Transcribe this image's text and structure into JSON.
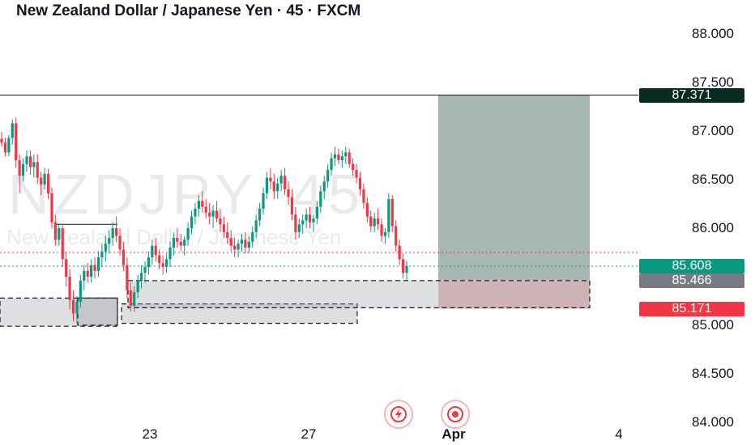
{
  "header": {
    "title": "New Zealand Dollar / Japanese Yen · 45 · FXCM"
  },
  "watermark": {
    "symbol": "NZDJPY, 45",
    "name": "New Zealand Dollar / Japanese Yen"
  },
  "chart_data": {
    "type": "candlestick",
    "ylim": [
      83.95,
      88.2
    ],
    "y_ticks": [
      "88.000",
      "87.500",
      "87.000",
      "86.500",
      "86.000",
      "85.000",
      "84.500",
      "84.000"
    ],
    "x_ticks": [
      {
        "label": "23",
        "bold": false
      },
      {
        "label": "27",
        "bold": false
      },
      {
        "label": "Apr",
        "bold": true
      },
      {
        "label": "4",
        "bold": false
      }
    ],
    "price_badges": [
      {
        "label": "87.371",
        "value": 87.371,
        "color": "#0a2b21"
      },
      {
        "label": "85.608",
        "value": 85.608,
        "color": "#089981"
      },
      {
        "label": "85.466",
        "value": 85.466,
        "color": "#787b86"
      },
      {
        "label": "85.171",
        "value": 85.171,
        "color": "#f23645"
      }
    ],
    "horizontal_line": 87.371,
    "dotted_lines": [
      {
        "value": 85.75,
        "color": "#f23645"
      },
      {
        "value": 85.608,
        "color": "#089981"
      }
    ],
    "position": {
      "entry": 85.466,
      "target": 87.371,
      "stop": 85.171,
      "profit_color": "#98aaa4",
      "loss_color": "#e5b3b6"
    },
    "zones": [
      {
        "top": 85.28,
        "bottom": 84.99
      },
      {
        "top": 85.28,
        "bottom": 85.0
      },
      {
        "top": 85.22,
        "bottom": 85.02
      },
      {
        "top": 85.46,
        "bottom": 85.18
      }
    ],
    "up_color": "#089981",
    "down_color": "#f23645",
    "candles": [
      [
        86.92,
        86.99,
        86.84,
        86.88
      ],
      [
        86.88,
        86.93,
        86.74,
        86.78
      ],
      [
        86.78,
        86.96,
        86.74,
        86.93
      ],
      [
        86.93,
        87.12,
        86.86,
        87.08
      ],
      [
        87.08,
        87.14,
        86.62,
        86.7
      ],
      [
        86.7,
        86.76,
        86.36,
        86.54
      ],
      [
        86.54,
        86.72,
        86.48,
        86.66
      ],
      [
        86.66,
        86.8,
        86.58,
        86.74
      ],
      [
        86.74,
        86.8,
        86.55,
        86.63
      ],
      [
        86.63,
        86.76,
        86.52,
        86.68
      ],
      [
        86.68,
        86.76,
        86.46,
        86.52
      ],
      [
        86.52,
        86.58,
        86.34,
        86.45
      ],
      [
        86.45,
        86.62,
        86.4,
        86.56
      ],
      [
        86.56,
        86.61,
        86.3,
        86.36
      ],
      [
        86.36,
        86.42,
        86.0,
        86.06
      ],
      [
        86.06,
        86.14,
        85.82,
        85.88
      ],
      [
        85.88,
        86.05,
        85.82,
        86.0
      ],
      [
        86.0,
        86.04,
        85.6,
        85.68
      ],
      [
        85.68,
        85.76,
        85.4,
        85.5
      ],
      [
        85.5,
        85.58,
        85.16,
        85.26
      ],
      [
        85.26,
        85.36,
        85.04,
        85.12
      ],
      [
        85.12,
        85.3,
        85.02,
        85.24
      ],
      [
        85.24,
        85.52,
        85.18,
        85.46
      ],
      [
        85.46,
        85.62,
        85.36,
        85.56
      ],
      [
        85.56,
        85.64,
        85.44,
        85.5
      ],
      [
        85.5,
        85.68,
        85.44,
        85.62
      ],
      [
        85.62,
        85.7,
        85.48,
        85.56
      ],
      [
        85.56,
        85.76,
        85.5,
        85.7
      ],
      [
        85.7,
        85.84,
        85.6,
        85.76
      ],
      [
        85.76,
        85.92,
        85.66,
        85.84
      ],
      [
        85.84,
        85.98,
        85.74,
        85.9
      ],
      [
        85.9,
        86.06,
        85.82,
        86.0
      ],
      [
        86.0,
        86.12,
        85.86,
        85.92
      ],
      [
        85.92,
        86.0,
        85.72,
        85.78
      ],
      [
        85.78,
        85.86,
        85.56,
        85.62
      ],
      [
        85.62,
        85.7,
        85.28,
        85.36
      ],
      [
        85.36,
        85.44,
        85.14,
        85.2
      ],
      [
        85.2,
        85.4,
        85.14,
        85.34
      ],
      [
        85.34,
        85.52,
        85.28,
        85.46
      ],
      [
        85.46,
        85.62,
        85.38,
        85.54
      ],
      [
        85.54,
        85.66,
        85.44,
        85.6
      ],
      [
        85.6,
        85.76,
        85.52,
        85.7
      ],
      [
        85.7,
        85.88,
        85.62,
        85.82
      ],
      [
        85.82,
        85.9,
        85.66,
        85.72
      ],
      [
        85.72,
        85.78,
        85.58,
        85.64
      ],
      [
        85.64,
        85.72,
        85.52,
        85.6
      ],
      [
        85.6,
        85.74,
        85.54,
        85.68
      ],
      [
        85.68,
        85.86,
        85.6,
        85.8
      ],
      [
        85.8,
        85.96,
        85.72,
        85.9
      ],
      [
        85.9,
        86.0,
        85.8,
        85.86
      ],
      [
        85.86,
        85.94,
        85.76,
        85.82
      ],
      [
        85.82,
        85.92,
        85.72,
        85.88
      ],
      [
        85.88,
        86.06,
        85.82,
        86.0
      ],
      [
        86.0,
        86.18,
        85.94,
        86.12
      ],
      [
        86.12,
        86.26,
        86.04,
        86.2
      ],
      [
        86.2,
        86.34,
        86.12,
        86.28
      ],
      [
        86.28,
        86.38,
        86.16,
        86.22
      ],
      [
        86.22,
        86.3,
        86.1,
        86.16
      ],
      [
        86.16,
        86.26,
        86.04,
        86.12
      ],
      [
        86.12,
        86.24,
        86.0,
        86.18
      ],
      [
        86.18,
        86.28,
        86.06,
        86.1
      ],
      [
        86.1,
        86.2,
        85.96,
        86.04
      ],
      [
        86.04,
        86.12,
        85.9,
        85.96
      ],
      [
        85.96,
        86.06,
        85.84,
        85.9
      ],
      [
        85.9,
        85.98,
        85.76,
        85.82
      ],
      [
        85.82,
        85.9,
        85.7,
        85.78
      ],
      [
        85.78,
        85.88,
        85.7,
        85.84
      ],
      [
        85.84,
        85.94,
        85.76,
        85.88
      ],
      [
        85.88,
        85.96,
        85.74,
        85.8
      ],
      [
        85.8,
        85.92,
        85.74,
        85.86
      ],
      [
        85.86,
        86.02,
        85.8,
        85.96
      ],
      [
        85.96,
        86.14,
        85.9,
        86.08
      ],
      [
        86.08,
        86.26,
        86.02,
        86.2
      ],
      [
        86.2,
        86.42,
        86.14,
        86.36
      ],
      [
        86.36,
        86.58,
        86.3,
        86.52
      ],
      [
        86.52,
        86.62,
        86.4,
        86.48
      ],
      [
        86.48,
        86.56,
        86.3,
        86.38
      ],
      [
        86.38,
        86.52,
        86.3,
        86.46
      ],
      [
        86.46,
        86.6,
        86.38,
        86.54
      ],
      [
        86.54,
        86.62,
        86.34,
        86.4
      ],
      [
        86.4,
        86.48,
        86.24,
        86.32
      ],
      [
        86.32,
        86.4,
        86.08,
        86.14
      ],
      [
        86.14,
        86.22,
        85.88,
        85.96
      ],
      [
        85.96,
        86.1,
        85.9,
        86.04
      ],
      [
        86.04,
        86.14,
        85.94,
        86.08
      ],
      [
        86.08,
        86.2,
        86.0,
        86.14
      ],
      [
        86.14,
        86.22,
        86.0,
        86.06
      ],
      [
        86.06,
        86.14,
        85.96,
        86.1
      ],
      [
        86.1,
        86.28,
        86.04,
        86.22
      ],
      [
        86.22,
        86.44,
        86.16,
        86.38
      ],
      [
        86.38,
        86.54,
        86.3,
        86.48
      ],
      [
        86.48,
        86.66,
        86.42,
        86.6
      ],
      [
        86.6,
        86.78,
        86.54,
        86.72
      ],
      [
        86.72,
        86.84,
        86.64,
        86.76
      ],
      [
        86.76,
        86.82,
        86.66,
        86.7
      ],
      [
        86.7,
        86.8,
        86.62,
        86.74
      ],
      [
        86.74,
        86.84,
        86.66,
        86.78
      ],
      [
        86.78,
        86.82,
        86.62,
        86.66
      ],
      [
        86.66,
        86.72,
        86.54,
        86.6
      ],
      [
        86.6,
        86.66,
        86.46,
        86.52
      ],
      [
        86.52,
        86.58,
        86.34,
        86.4
      ],
      [
        86.4,
        86.46,
        86.2,
        86.26
      ],
      [
        86.26,
        86.32,
        86.06,
        86.12
      ],
      [
        86.12,
        86.18,
        85.96,
        86.02
      ],
      [
        86.02,
        86.16,
        85.96,
        86.1
      ],
      [
        86.1,
        86.2,
        85.98,
        86.04
      ],
      [
        86.04,
        86.1,
        85.86,
        85.92
      ],
      [
        85.92,
        86.0,
        85.84,
        85.96
      ],
      [
        85.96,
        86.36,
        85.9,
        86.3
      ],
      [
        86.3,
        86.34,
        85.96,
        86.02
      ],
      [
        86.02,
        86.08,
        85.76,
        85.82
      ],
      [
        85.82,
        85.88,
        85.62,
        85.68
      ],
      [
        85.68,
        85.74,
        85.48,
        85.54
      ],
      [
        85.54,
        85.66,
        85.46,
        85.61
      ]
    ]
  }
}
